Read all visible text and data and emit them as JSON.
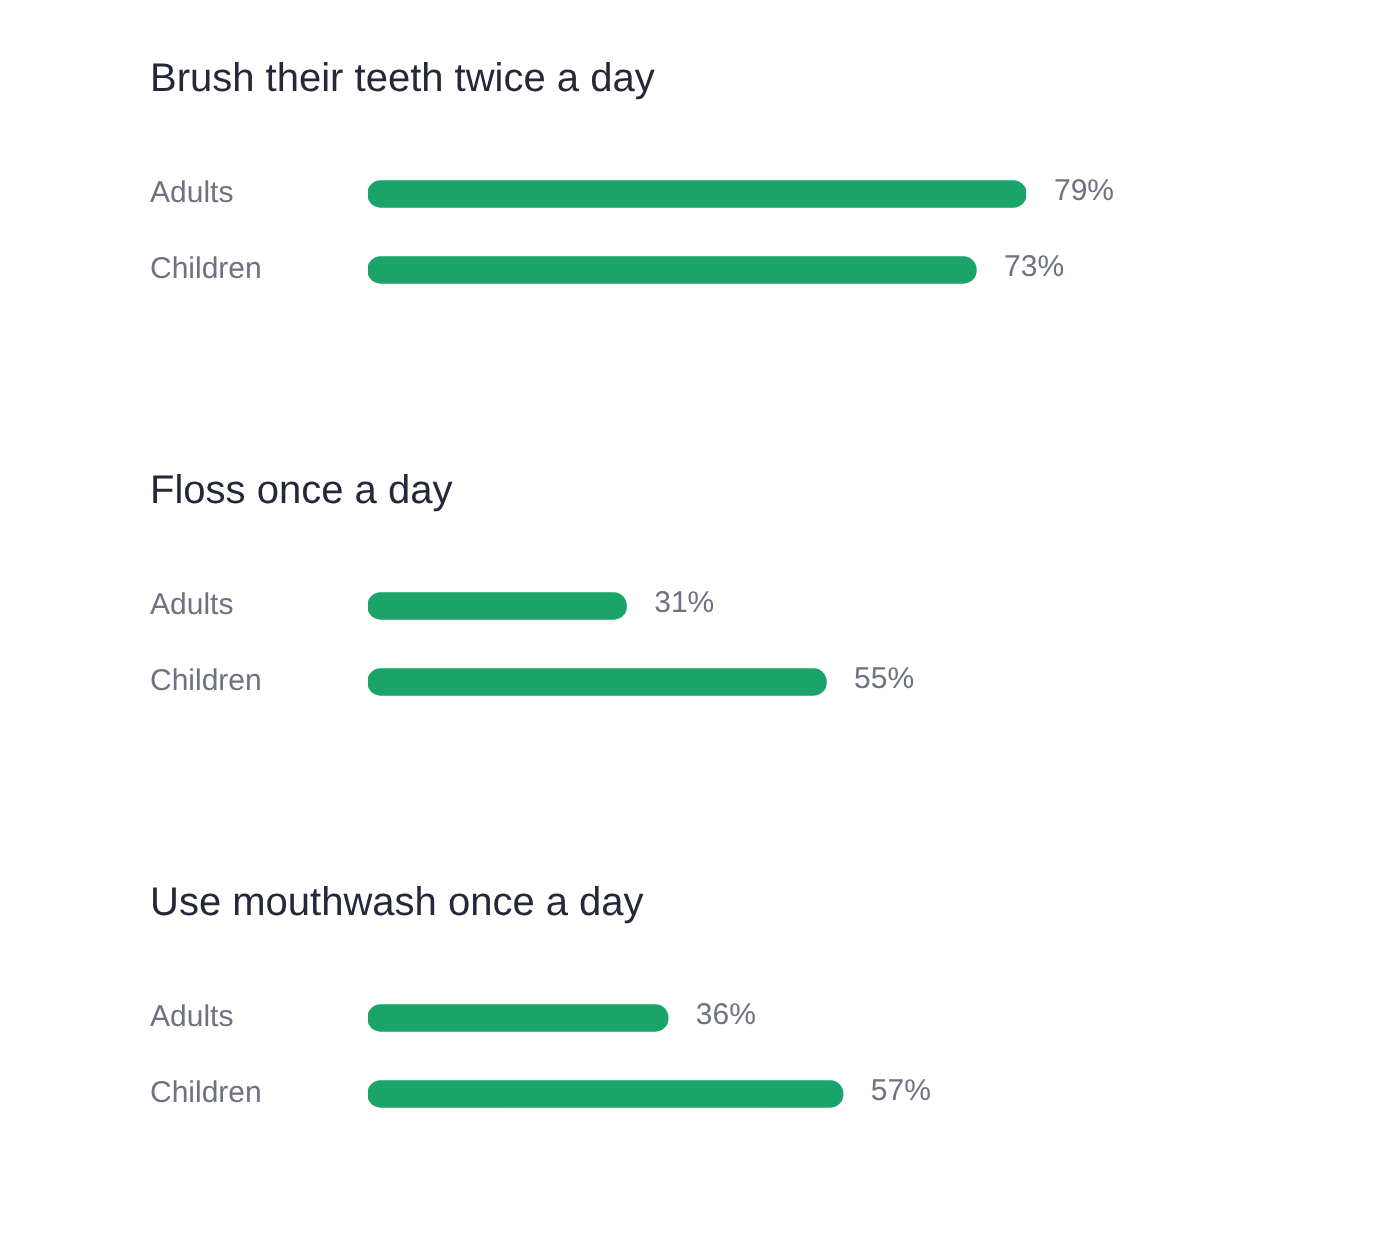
{
  "chart_data": [
    {
      "type": "bar",
      "orientation": "horizontal",
      "title": "Brush their teeth twice a day",
      "categories": [
        "Adults",
        "Children"
      ],
      "values": [
        79,
        73
      ],
      "value_labels": [
        "79%",
        "73%"
      ],
      "color": "#1ba46a",
      "tick_labels": "y"
    },
    {
      "type": "bar",
      "orientation": "horizontal",
      "title": "Floss once a day",
      "categories": [
        "Adults",
        "Children"
      ],
      "values": [
        31,
        55
      ],
      "value_labels": [
        "31%",
        "55%"
      ],
      "color": "#1ba46a",
      "tick_labels": "y"
    },
    {
      "type": "bar",
      "orientation": "horizontal",
      "title": "Use mouthwash once a day",
      "categories": [
        "Adults",
        "Children"
      ],
      "values": [
        36,
        57
      ],
      "value_labels": [
        "36%",
        "57%"
      ],
      "color": "#1ba46a",
      "tick_labels": "y"
    }
  ]
}
